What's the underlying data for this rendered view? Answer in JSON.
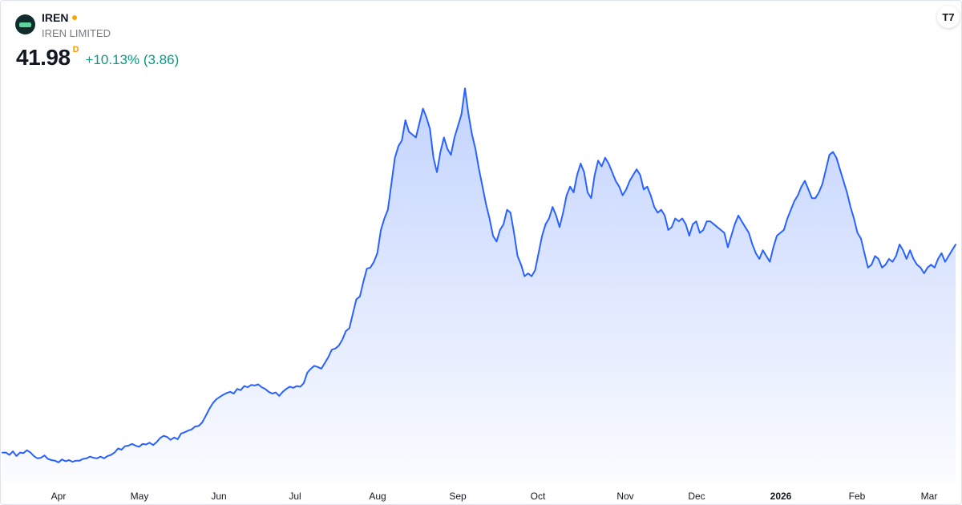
{
  "symbol": "IREN",
  "company": "IREN LIMITED",
  "price": "41.98",
  "delay_flag": "D",
  "change": "+10.13% (3.86)",
  "badge": "T7",
  "colors": {
    "line": "#2962ff",
    "area_top": "#2962ff",
    "positive": "#089981",
    "status_dot": "#f7a600"
  },
  "icons": {
    "logo": "iren-logo",
    "badge": "tradingview-logo"
  },
  "chart_data": {
    "type": "area",
    "x_axis_labels": [
      "Apr",
      "May",
      "Jun",
      "Jul",
      "Aug",
      "Sep",
      "Oct",
      "Nov",
      "Dec",
      "2026",
      "Feb",
      "Mar"
    ],
    "ylim": [
      4,
      70
    ],
    "grid": false,
    "series": [
      {
        "values": [
          6.0,
          6.0,
          5.6,
          6.2,
          5.4,
          6.0,
          5.9,
          6.4,
          6.0,
          5.4,
          5.0,
          5.1,
          5.5,
          4.9,
          4.7,
          4.6,
          4.3,
          4.8,
          4.5,
          4.7,
          4.4,
          4.6,
          4.6,
          4.9,
          5.0,
          5.3,
          5.1,
          5.0,
          5.3,
          5.0,
          5.4,
          5.6,
          6.0,
          6.7,
          6.5,
          7.1,
          7.2,
          7.5,
          7.2,
          7.0,
          7.5,
          7.4,
          7.7,
          7.3,
          7.8,
          8.5,
          8.9,
          8.7,
          8.2,
          8.6,
          8.3,
          9.3,
          9.5,
          9.8,
          10.0,
          10.5,
          10.6,
          11.2,
          12.3,
          13.5,
          14.5,
          15.2,
          15.6,
          16.0,
          16.3,
          16.5,
          16.2,
          17.0,
          16.8,
          17.5,
          17.3,
          17.7,
          17.6,
          17.8,
          17.3,
          17.0,
          16.5,
          16.2,
          16.4,
          15.8,
          16.5,
          17.0,
          17.4,
          17.2,
          17.5,
          17.4,
          18.0,
          19.8,
          20.5,
          21.0,
          20.8,
          20.5,
          21.5,
          22.5,
          23.8,
          24.0,
          24.5,
          25.5,
          27.0,
          27.5,
          30.0,
          32.5,
          33.0,
          35.5,
          37.8,
          38.0,
          39.0,
          40.5,
          44.5,
          46.5,
          48.0,
          52.5,
          57.0,
          59.0,
          60.0,
          63.5,
          61.5,
          61.0,
          60.5,
          63.0,
          65.5,
          64.0,
          62.0,
          57.0,
          54.5,
          58.0,
          60.5,
          58.5,
          57.5,
          60.5,
          62.5,
          64.5,
          69.0,
          64.5,
          61.0,
          58.5,
          55.0,
          52.0,
          49.0,
          46.5,
          43.5,
          42.5,
          44.5,
          45.5,
          48.0,
          47.5,
          44.0,
          40.0,
          38.5,
          36.5,
          37.0,
          36.5,
          37.5,
          40.5,
          43.5,
          45.5,
          46.5,
          48.5,
          47.0,
          45.0,
          47.5,
          50.5,
          52.0,
          51.0,
          54.0,
          56.0,
          54.5,
          51.0,
          50.0,
          54.0,
          56.5,
          55.5,
          57.0,
          56.0,
          54.5,
          53.0,
          52.0,
          50.5,
          51.5,
          53.0,
          54.0,
          55.0,
          54.0,
          51.5,
          52.0,
          50.5,
          48.5,
          47.5,
          48.0,
          47.0,
          44.5,
          45.0,
          46.5,
          46.0,
          46.5,
          45.5,
          43.5,
          45.5,
          46.0,
          44.0,
          44.5,
          46.0,
          46.0,
          45.5,
          45.0,
          44.5,
          44.0,
          41.5,
          43.5,
          45.5,
          47.0,
          46.0,
          45.0,
          44.0,
          42.0,
          40.5,
          39.5,
          41.0,
          40.0,
          39.0,
          41.5,
          43.5,
          44.0,
          44.5,
          46.5,
          48.0,
          49.5,
          50.5,
          52.0,
          53.0,
          51.5,
          50.0,
          50.0,
          51.0,
          52.5,
          55.0,
          57.5,
          58.0,
          57.0,
          55.0,
          53.0,
          51.0,
          48.5,
          46.5,
          44.0,
          43.0,
          40.5,
          38.0,
          38.5,
          40.0,
          39.5,
          38.0,
          38.5,
          39.5,
          39.0,
          40.0,
          42.0,
          41.0,
          39.5,
          41.0,
          39.5,
          38.5,
          38.0,
          37.0,
          38.0,
          38.5,
          38.0,
          39.5,
          40.5,
          39.0,
          40.0,
          41.0,
          41.98
        ]
      }
    ]
  }
}
